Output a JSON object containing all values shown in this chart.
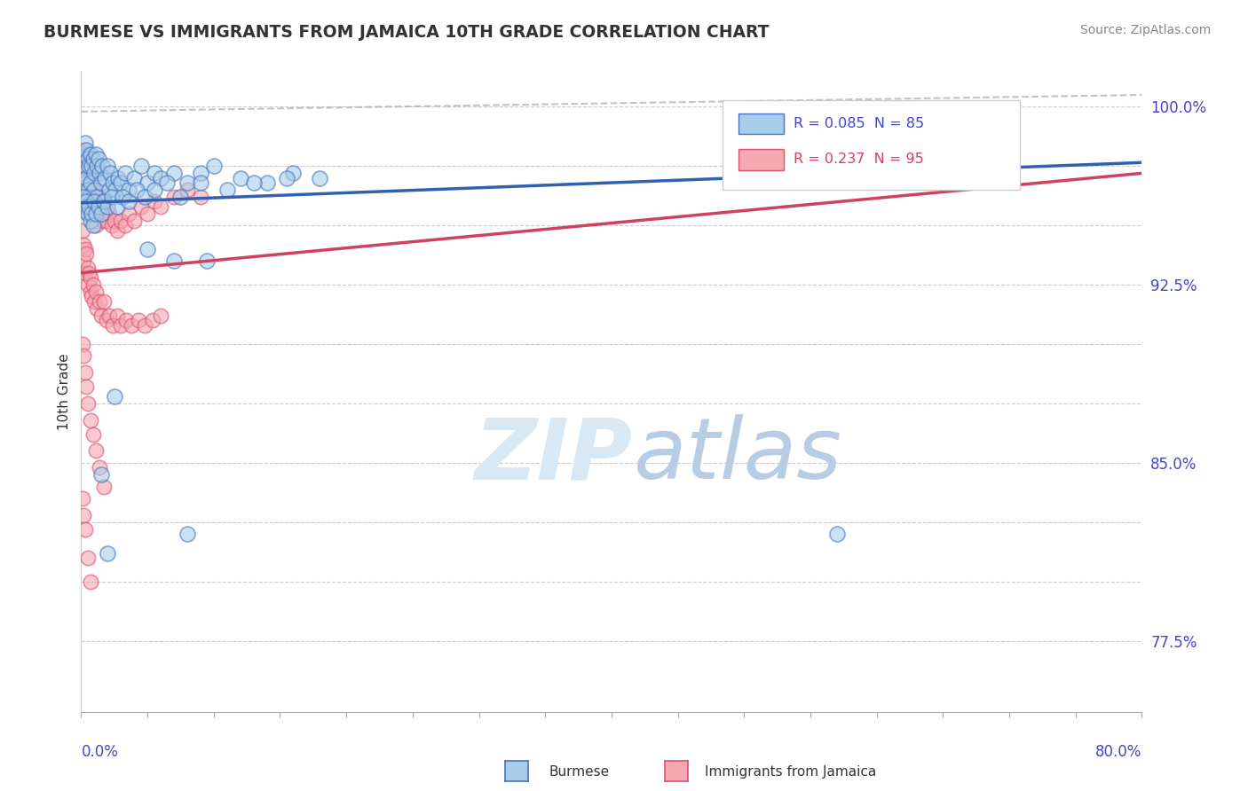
{
  "title": "BURMESE VS IMMIGRANTS FROM JAMAICA 10TH GRADE CORRELATION CHART",
  "source": "Source: ZipAtlas.com",
  "ylabel": "10th Grade",
  "xlim": [
    0.0,
    0.8
  ],
  "ylim": [
    0.745,
    1.015
  ],
  "ytick_vals": [
    0.775,
    0.8,
    0.825,
    0.85,
    0.875,
    0.9,
    0.925,
    0.95,
    0.975,
    1.0
  ],
  "ytick_labels": [
    "77.5%",
    "",
    "",
    "85.0%",
    "",
    "",
    "92.5%",
    "",
    "",
    "100.0%"
  ],
  "blue_color": "#a8cde8",
  "pink_color": "#f4a8b0",
  "blue_edge_color": "#4472c4",
  "pink_edge_color": "#e05070",
  "blue_line_color": "#3060b0",
  "pink_line_color": "#d04060",
  "axis_label_color": "#4444cc",
  "title_color": "#333333",
  "source_color": "#888888",
  "watermark_color": "#d8e8f5",
  "grid_color": "#cccccc",
  "background_color": "#ffffff",
  "legend_blue_R": "0.085",
  "legend_blue_N": "85",
  "legend_pink_R": "0.237",
  "legend_pink_N": "95",
  "legend_burmese": "Burmese",
  "legend_jamaica": "Immigrants from Jamaica",
  "blue_line_x0": 0.0,
  "blue_line_y0": 0.9595,
  "blue_line_x1": 0.8,
  "blue_line_y1": 0.9765,
  "pink_line_x0": 0.0,
  "pink_line_y0": 0.93,
  "pink_line_x1": 0.8,
  "pink_line_y1": 0.972,
  "dash_line_x0": 0.0,
  "dash_line_y0": 0.998,
  "dash_line_x1": 0.8,
  "dash_line_y1": 1.005,
  "blue_scatter_x": [
    0.001,
    0.001,
    0.002,
    0.002,
    0.003,
    0.003,
    0.004,
    0.004,
    0.005,
    0.005,
    0.006,
    0.006,
    0.007,
    0.007,
    0.008,
    0.008,
    0.009,
    0.01,
    0.01,
    0.011,
    0.012,
    0.012,
    0.013,
    0.014,
    0.015,
    0.016,
    0.017,
    0.018,
    0.02,
    0.021,
    0.022,
    0.024,
    0.026,
    0.028,
    0.03,
    0.033,
    0.036,
    0.04,
    0.045,
    0.05,
    0.055,
    0.06,
    0.07,
    0.08,
    0.09,
    0.1,
    0.12,
    0.14,
    0.16,
    0.18,
    0.002,
    0.003,
    0.004,
    0.005,
    0.006,
    0.007,
    0.008,
    0.009,
    0.01,
    0.011,
    0.013,
    0.015,
    0.017,
    0.02,
    0.023,
    0.027,
    0.031,
    0.036,
    0.042,
    0.048,
    0.055,
    0.065,
    0.075,
    0.09,
    0.11,
    0.13,
    0.155,
    0.05,
    0.07,
    0.095,
    0.025,
    0.015,
    0.02,
    0.08,
    0.57
  ],
  "blue_scatter_y": [
    0.98,
    0.972,
    0.978,
    0.968,
    0.985,
    0.975,
    0.982,
    0.97,
    0.978,
    0.965,
    0.975,
    0.962,
    0.98,
    0.968,
    0.975,
    0.96,
    0.978,
    0.972,
    0.965,
    0.98,
    0.975,
    0.962,
    0.978,
    0.972,
    0.968,
    0.975,
    0.96,
    0.97,
    0.975,
    0.965,
    0.972,
    0.968,
    0.965,
    0.97,
    0.968,
    0.972,
    0.965,
    0.97,
    0.975,
    0.968,
    0.972,
    0.97,
    0.972,
    0.968,
    0.972,
    0.975,
    0.97,
    0.968,
    0.972,
    0.97,
    0.962,
    0.958,
    0.96,
    0.955,
    0.958,
    0.952,
    0.955,
    0.95,
    0.96,
    0.955,
    0.958,
    0.955,
    0.96,
    0.958,
    0.962,
    0.958,
    0.962,
    0.96,
    0.965,
    0.962,
    0.965,
    0.968,
    0.962,
    0.968,
    0.965,
    0.968,
    0.97,
    0.94,
    0.935,
    0.935,
    0.878,
    0.845,
    0.812,
    0.82,
    0.82
  ],
  "pink_scatter_x": [
    0.001,
    0.001,
    0.001,
    0.002,
    0.002,
    0.002,
    0.003,
    0.003,
    0.003,
    0.004,
    0.004,
    0.004,
    0.005,
    0.005,
    0.005,
    0.006,
    0.006,
    0.007,
    0.007,
    0.008,
    0.008,
    0.009,
    0.009,
    0.01,
    0.01,
    0.011,
    0.011,
    0.012,
    0.013,
    0.014,
    0.015,
    0.016,
    0.017,
    0.018,
    0.019,
    0.021,
    0.023,
    0.025,
    0.027,
    0.03,
    0.033,
    0.036,
    0.04,
    0.045,
    0.05,
    0.055,
    0.06,
    0.07,
    0.08,
    0.09,
    0.001,
    0.002,
    0.002,
    0.003,
    0.003,
    0.004,
    0.005,
    0.005,
    0.006,
    0.007,
    0.007,
    0.008,
    0.009,
    0.01,
    0.011,
    0.012,
    0.014,
    0.015,
    0.017,
    0.019,
    0.021,
    0.024,
    0.027,
    0.03,
    0.034,
    0.038,
    0.043,
    0.048,
    0.054,
    0.06,
    0.001,
    0.002,
    0.003,
    0.004,
    0.005,
    0.007,
    0.009,
    0.011,
    0.014,
    0.017,
    0.001,
    0.002,
    0.003,
    0.005,
    0.007
  ],
  "pink_scatter_y": [
    0.978,
    0.972,
    0.962,
    0.982,
    0.975,
    0.965,
    0.98,
    0.97,
    0.96,
    0.978,
    0.968,
    0.958,
    0.975,
    0.965,
    0.955,
    0.972,
    0.962,
    0.97,
    0.96,
    0.968,
    0.958,
    0.965,
    0.955,
    0.962,
    0.952,
    0.96,
    0.95,
    0.958,
    0.955,
    0.962,
    0.958,
    0.955,
    0.952,
    0.958,
    0.952,
    0.955,
    0.95,
    0.952,
    0.948,
    0.952,
    0.95,
    0.955,
    0.952,
    0.958,
    0.955,
    0.96,
    0.958,
    0.962,
    0.965,
    0.962,
    0.948,
    0.942,
    0.935,
    0.94,
    0.93,
    0.938,
    0.932,
    0.925,
    0.93,
    0.922,
    0.928,
    0.92,
    0.925,
    0.918,
    0.922,
    0.915,
    0.918,
    0.912,
    0.918,
    0.91,
    0.912,
    0.908,
    0.912,
    0.908,
    0.91,
    0.908,
    0.91,
    0.908,
    0.91,
    0.912,
    0.9,
    0.895,
    0.888,
    0.882,
    0.875,
    0.868,
    0.862,
    0.855,
    0.848,
    0.84,
    0.835,
    0.828,
    0.822,
    0.81,
    0.8
  ]
}
